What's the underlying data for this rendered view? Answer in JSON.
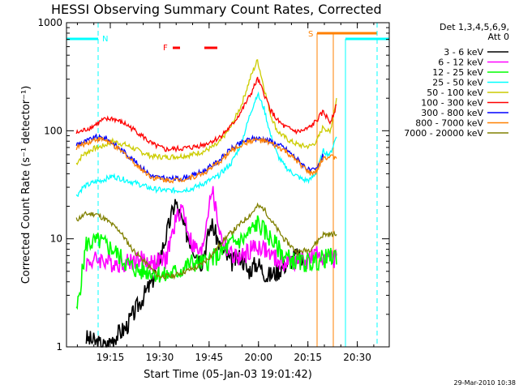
{
  "chart_data": {
    "type": "line",
    "title": "HESSI Observing Summary Count Rates, Corrected",
    "xlabel": "Start Time (05-Jan-03 19:01:42)",
    "ylabel": "Corrected Count Rate (s⁻¹ detector⁻¹)",
    "y_scale": "log",
    "ylim": [
      1,
      1000
    ],
    "xlim": [
      0,
      98
    ],
    "x_unit": "minutes after 19:01:42",
    "x_ticks": [
      {
        "label": "19:15",
        "value": 13.3
      },
      {
        "label": "19:30",
        "value": 28.3
      },
      {
        "label": "19:45",
        "value": 43.3
      },
      {
        "label": "20:00",
        "value": 58.3
      },
      {
        "label": "20:15",
        "value": 73.3
      },
      {
        "label": "20:30",
        "value": 88.3
      }
    ],
    "y_ticks": [
      {
        "label": "1",
        "value": 1
      },
      {
        "label": "10",
        "value": 10
      },
      {
        "label": "100",
        "value": 100
      },
      {
        "label": "1000",
        "value": 1000
      }
    ],
    "legend": {
      "title": [
        "Det 1,3,4,5,6,9,",
        "Att 0"
      ],
      "placement": "right"
    },
    "series": [
      {
        "name": "3 - 6 keV",
        "color": "#000000",
        "x": [
          6,
          12,
          14,
          18,
          22,
          26,
          30,
          33,
          36,
          38,
          41,
          44,
          47,
          50,
          53,
          55,
          58,
          61,
          64,
          67,
          70,
          72
        ],
        "y": [
          1.2,
          1.0,
          1.2,
          1.5,
          2.5,
          4.0,
          10,
          22,
          12,
          9,
          6,
          14,
          8,
          6,
          7,
          5,
          6,
          4.5,
          5,
          6,
          7,
          6
        ]
      },
      {
        "name": "6 - 12 keV",
        "color": "#ff00ff",
        "x": [
          6,
          10,
          14,
          18,
          22,
          26,
          30,
          33,
          35,
          38,
          41,
          44,
          47,
          50,
          53,
          56,
          59,
          62,
          65,
          68,
          70,
          72,
          74,
          76,
          78,
          80,
          82
        ],
        "y": [
          6,
          6.5,
          6,
          6,
          6.5,
          6,
          6.2,
          14,
          20,
          9,
          7,
          30,
          10,
          7,
          6.5,
          8,
          8.5,
          7,
          6,
          6,
          6.5,
          6,
          6.5,
          7,
          7,
          6.5,
          6.5
        ]
      },
      {
        "name": "12 - 25 keV",
        "color": "#00ff00",
        "x": [
          3,
          6,
          10,
          14,
          18,
          22,
          26,
          30,
          34,
          38,
          42,
          46,
          50,
          54,
          58,
          62,
          66,
          70,
          74,
          78,
          82
        ],
        "y": [
          2,
          9,
          9.5,
          8,
          6,
          5,
          5,
          4.5,
          5,
          6,
          6,
          7,
          9,
          10,
          14,
          10,
          7,
          6,
          6,
          6.5,
          7
        ]
      },
      {
        "name": "25 - 50 keV",
        "color": "#00ffff",
        "x": [
          3,
          5,
          8,
          11,
          14,
          18,
          22,
          26,
          30,
          34,
          38,
          42,
          46,
          50,
          53,
          56,
          58,
          60,
          62,
          64,
          66,
          68,
          70,
          72,
          74,
          76,
          78,
          80,
          82
        ],
        "y": [
          25,
          30,
          33,
          35,
          38,
          35,
          32,
          29,
          28,
          28,
          29,
          33,
          38,
          50,
          75,
          150,
          220,
          160,
          90,
          60,
          48,
          42,
          38,
          35,
          35,
          42,
          65,
          60,
          90
        ]
      },
      {
        "name": "50 - 100 keV",
        "color": "#cccc00",
        "x": [
          3,
          5,
          8,
          11,
          14,
          18,
          22,
          26,
          30,
          34,
          38,
          42,
          46,
          50,
          53,
          56,
          58,
          60,
          62,
          64,
          66,
          68,
          70,
          72,
          74,
          76,
          78,
          80,
          82
        ],
        "y": [
          50,
          60,
          68,
          72,
          80,
          74,
          65,
          58,
          57,
          58,
          60,
          65,
          75,
          110,
          170,
          320,
          450,
          250,
          140,
          100,
          88,
          80,
          75,
          72,
          72,
          80,
          110,
          95,
          200
        ]
      },
      {
        "name": "100 - 300 keV",
        "color": "#ff0000",
        "x": [
          3,
          5,
          8,
          11,
          14,
          18,
          22,
          26,
          30,
          34,
          38,
          42,
          46,
          50,
          53,
          56,
          58,
          60,
          62,
          64,
          66,
          68,
          70,
          72,
          74,
          76,
          78,
          80,
          82
        ],
        "y": [
          95,
          100,
          110,
          125,
          130,
          115,
          95,
          75,
          67,
          68,
          70,
          75,
          85,
          110,
          150,
          220,
          300,
          220,
          155,
          125,
          110,
          103,
          98,
          100,
          108,
          125,
          150,
          120,
          170
        ]
      },
      {
        "name": "300 - 800 keV",
        "color": "#0000ff",
        "x": [
          3,
          6,
          9,
          12,
          15,
          18,
          22,
          26,
          30,
          34,
          38,
          42,
          46,
          50,
          54,
          56,
          58,
          60,
          62,
          66,
          70,
          72,
          74,
          76,
          78
        ],
        "y": [
          75,
          80,
          87,
          85,
          73,
          62,
          48,
          38,
          36,
          36,
          38,
          43,
          52,
          68,
          80,
          84,
          85,
          84,
          80,
          70,
          55,
          48,
          42,
          44,
          60
        ]
      },
      {
        "name": "800 - 7000 keV",
        "color": "#ff8000",
        "x": [
          3,
          6,
          9,
          12,
          15,
          18,
          22,
          26,
          30,
          34,
          38,
          42,
          46,
          50,
          54,
          56,
          58,
          60,
          62,
          66,
          70,
          72,
          74,
          76,
          78,
          80,
          82
        ],
        "y": [
          70,
          77,
          84,
          82,
          70,
          60,
          46,
          37,
          35,
          35,
          37,
          41,
          50,
          65,
          77,
          81,
          82,
          80,
          76,
          66,
          52,
          46,
          40,
          42,
          57,
          57,
          57
        ]
      },
      {
        "name": "7000 - 20000 keV",
        "color": "#808000",
        "x": [
          3,
          6,
          9,
          12,
          16,
          20,
          24,
          28,
          32,
          36,
          40,
          44,
          48,
          52,
          56,
          58,
          60,
          62,
          66,
          70,
          74,
          78,
          80,
          82
        ],
        "y": [
          15,
          17,
          17,
          15,
          12,
          8,
          6,
          4.5,
          4.5,
          5,
          5.5,
          7,
          10,
          13,
          17,
          20,
          19,
          15,
          10,
          7.5,
          8,
          11,
          11,
          11
        ]
      }
    ],
    "annotations": [
      {
        "label": "N",
        "color": "#00ffff"
      },
      {
        "label": "F",
        "color": "#ff0000"
      },
      {
        "label": "S",
        "color": "#ff8000"
      }
    ],
    "timestamp": "29-Mar-2010 10:38"
  }
}
